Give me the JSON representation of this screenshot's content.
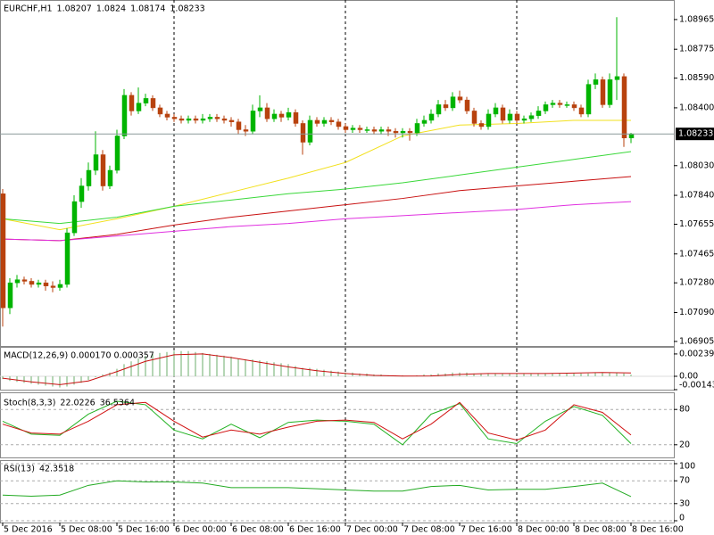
{
  "chart_data": [
    {
      "type": "candlestick",
      "title": "EURCHF,H1",
      "categories": [
        "5 Dec 2016",
        null,
        null,
        null,
        null,
        null,
        null,
        null,
        "5 Dec 08:00",
        null,
        null,
        null,
        null,
        null,
        null,
        null,
        "5 Dec 16:00",
        null,
        null,
        null,
        null,
        null,
        null,
        null,
        "6 Dec 00:00",
        null,
        null,
        null,
        null,
        null,
        null,
        null,
        "6 Dec 08:00",
        null,
        null,
        null,
        null,
        null,
        null,
        null,
        "6 Dec 16:00",
        null,
        null,
        null,
        null,
        null,
        null,
        null,
        "7 Dec 00:00",
        null,
        null,
        null,
        null,
        null,
        null,
        null,
        "7 Dec 08:00",
        null,
        null,
        null,
        null,
        null,
        null,
        null,
        "7 Dec 16:00",
        null,
        null,
        null,
        null,
        null,
        null,
        null,
        "8 Dec 00:00",
        null,
        null,
        null,
        null,
        null,
        null,
        null,
        "8 Dec 08:00",
        null,
        null,
        null,
        null,
        null,
        null,
        null,
        "8 Dec 16:00"
      ],
      "open": [
        1.0785,
        1.0712,
        1.0728,
        1.073,
        1.0729,
        1.0727,
        1.0728,
        1.0726,
        1.0725,
        1.0727,
        1.076,
        1.078,
        1.079,
        1.08,
        1.081,
        1.079,
        1.08,
        1.0822,
        1.0848,
        1.0838,
        1.0843,
        1.0846,
        1.084,
        1.0836,
        1.0834,
        1.0833,
        1.0832,
        1.0833,
        1.0832,
        1.0833,
        1.0834,
        1.0833,
        1.0832,
        1.0831,
        1.0826,
        1.0825,
        1.0838,
        1.084,
        1.0833,
        1.0836,
        1.0834,
        1.0837,
        1.083,
        1.0818,
        1.0832,
        1.083,
        1.0832,
        1.0831,
        1.0828,
        1.0826,
        1.0827,
        1.0826,
        1.0826,
        1.0825,
        1.0826,
        1.0825,
        1.0824,
        1.0825,
        1.0824,
        1.083,
        1.0832,
        1.0836,
        1.0842,
        1.084,
        1.0847,
        1.0845,
        1.0838,
        1.083,
        1.0828,
        1.0836,
        1.084,
        1.0832,
        1.0836,
        1.0832,
        1.0833,
        1.0835,
        1.0838,
        1.0842,
        1.0843,
        1.0842,
        1.0842,
        1.084,
        1.0836,
        1.0855,
        1.0858,
        1.0842,
        1.0858,
        1.086,
        1.08207
      ],
      "high": [
        1.0788,
        1.0731,
        1.0733,
        1.0732,
        1.0731,
        1.073,
        1.073,
        1.0729,
        1.073,
        1.0763,
        1.0784,
        1.0795,
        1.0805,
        1.0825,
        1.0813,
        1.0803,
        1.0826,
        1.0852,
        1.085,
        1.0853,
        1.0849,
        1.0848,
        1.0842,
        1.0838,
        1.0836,
        1.0835,
        1.0835,
        1.0835,
        1.0836,
        1.0836,
        1.0836,
        1.0835,
        1.0834,
        1.0833,
        1.0829,
        1.0842,
        1.0848,
        1.0843,
        1.0839,
        1.0838,
        1.084,
        1.0839,
        1.0832,
        1.0835,
        1.0834,
        1.0834,
        1.0834,
        1.0833,
        1.083,
        1.0829,
        1.0829,
        1.0828,
        1.0828,
        1.0828,
        1.0828,
        1.0827,
        1.0827,
        1.0827,
        1.0833,
        1.0835,
        1.0839,
        1.0845,
        1.0845,
        1.085,
        1.0851,
        1.0847,
        1.084,
        1.0832,
        1.0839,
        1.0843,
        1.0842,
        1.0839,
        1.0838,
        1.0835,
        1.0837,
        1.0841,
        1.0844,
        1.0845,
        1.0845,
        1.0844,
        1.0844,
        1.0842,
        1.0858,
        1.0862,
        1.086,
        1.0862,
        1.0898,
        1.0862,
        1.0824
      ],
      "low": [
        1.07,
        1.0708,
        1.0725,
        1.0727,
        1.0725,
        1.0725,
        1.0723,
        1.0722,
        1.0723,
        1.0725,
        1.0758,
        1.0776,
        1.0787,
        1.0797,
        1.0787,
        1.0788,
        1.0798,
        1.082,
        1.0835,
        1.0836,
        1.0841,
        1.0838,
        1.0834,
        1.0832,
        1.0831,
        1.083,
        1.083,
        1.083,
        1.083,
        1.0831,
        1.0831,
        1.083,
        1.0828,
        1.0823,
        1.0822,
        1.0823,
        1.0834,
        1.0831,
        1.0831,
        1.0831,
        1.0832,
        1.0828,
        1.081,
        1.0816,
        1.0828,
        1.0828,
        1.0829,
        1.0826,
        1.0824,
        1.0824,
        1.0824,
        1.0824,
        1.0823,
        1.0823,
        1.0822,
        1.0821,
        1.0821,
        1.0819,
        1.0822,
        1.0828,
        1.083,
        1.0834,
        1.0838,
        1.0838,
        1.0843,
        1.0836,
        1.0828,
        1.0826,
        1.0826,
        1.0834,
        1.083,
        1.083,
        1.083,
        1.083,
        1.0831,
        1.0833,
        1.0836,
        1.084,
        1.084,
        1.084,
        1.0838,
        1.0834,
        1.0834,
        1.0852,
        1.084,
        1.084,
        1.0845,
        1.0815,
        1.08174
      ],
      "close": [
        1.0712,
        1.0728,
        1.073,
        1.0729,
        1.0727,
        1.0728,
        1.0726,
        1.0725,
        1.0727,
        1.076,
        1.078,
        1.079,
        1.08,
        1.081,
        1.079,
        1.08,
        1.0822,
        1.0848,
        1.0838,
        1.0843,
        1.0846,
        1.084,
        1.0836,
        1.0834,
        1.0833,
        1.0832,
        1.0833,
        1.0832,
        1.0833,
        1.0834,
        1.0833,
        1.0832,
        1.0831,
        1.0826,
        1.0825,
        1.0838,
        1.084,
        1.0833,
        1.0836,
        1.0834,
        1.0837,
        1.083,
        1.0818,
        1.0832,
        1.083,
        1.0832,
        1.0831,
        1.0828,
        1.0826,
        1.0827,
        1.0826,
        1.0826,
        1.0825,
        1.0826,
        1.0825,
        1.0824,
        1.0825,
        1.0824,
        1.083,
        1.0832,
        1.0836,
        1.0842,
        1.084,
        1.0847,
        1.0845,
        1.0838,
        1.083,
        1.0828,
        1.0836,
        1.084,
        1.0832,
        1.0836,
        1.0832,
        1.0833,
        1.0835,
        1.0838,
        1.0842,
        1.0843,
        1.0842,
        1.0842,
        1.084,
        1.0836,
        1.0855,
        1.0858,
        1.0842,
        1.0858,
        1.086,
        1.08207,
        1.08233
      ],
      "up_color": "#00b400",
      "down_color": "#b8420e",
      "series": [
        {
          "color": "#f2e01c",
          "x": [
            0,
            8,
            16,
            24,
            32,
            40,
            48,
            56,
            64,
            72,
            80,
            88
          ],
          "values": [
            1.0769,
            1.0762,
            1.0769,
            1.0777,
            1.0786,
            1.0795,
            1.0805,
            1.0822,
            1.0829,
            1.083,
            1.0832,
            1.0832
          ]
        },
        {
          "color": "#3ad83a",
          "x": [
            0,
            8,
            16,
            24,
            32,
            40,
            48,
            56,
            64,
            72,
            80,
            88
          ],
          "values": [
            1.0769,
            1.0766,
            1.077,
            1.0777,
            1.0781,
            1.0785,
            1.0788,
            1.0792,
            1.0797,
            1.0802,
            1.0807,
            1.0812
          ]
        },
        {
          "color": "#c81010",
          "x": [
            0,
            8,
            16,
            24,
            32,
            40,
            48,
            56,
            64,
            72,
            80,
            88
          ],
          "values": [
            1.0756,
            1.0755,
            1.0759,
            1.0765,
            1.077,
            1.0774,
            1.0778,
            1.0782,
            1.0787,
            1.079,
            1.0793,
            1.0796
          ]
        },
        {
          "color": "#e030e0",
          "x": [
            0,
            8,
            16,
            24,
            32,
            40,
            48,
            56,
            64,
            72,
            80,
            88
          ],
          "values": [
            1.0756,
            1.0755,
            1.0758,
            1.0761,
            1.0764,
            1.0766,
            1.0769,
            1.0771,
            1.0773,
            1.0775,
            1.0778,
            1.078
          ]
        }
      ],
      "ylim": [
        1.06876,
        1.0909
      ],
      "yticks": [
        1.08965,
        1.08775,
        {
          "value": 1.0859,
          "label": "1.08590"
        },
        {
          "value": 1.084,
          "label": "1.08400"
        },
        {
          "value": 1.0803,
          "label": "1.08030"
        },
        {
          "value": 1.0784,
          "label": "1.07840"
        },
        1.07655,
        1.07465,
        {
          "value": 1.0728,
          "label": "1.07280"
        },
        {
          "value": 1.0709,
          "label": "1.07090"
        },
        1.06905
      ],
      "current_price_line": true,
      "period_separators": true
    },
    {
      "type": "macd",
      "title": "MACD(12,26,9) 0.000170 0.000357",
      "values": [
        -0.0003,
        -0.0005,
        -0.0006,
        -0.0007,
        -0.0008,
        -0.0009,
        -0.001,
        -0.0011,
        -0.0012,
        -0.0011,
        -0.0009,
        -0.0007,
        -0.0004,
        -0.0001,
        0.0002,
        0.0004,
        0.0008,
        0.0013,
        0.0016,
        0.0019,
        0.0022,
        0.0024,
        0.0025,
        0.0026,
        0.0027,
        0.0027,
        0.0027,
        0.0026,
        0.0025,
        0.0024,
        0.0023,
        0.0022,
        0.0021,
        0.0019,
        0.0018,
        0.0018,
        0.0017,
        0.0016,
        0.0015,
        0.0014,
        0.0013,
        0.0011,
        0.0009,
        0.0009,
        0.0008,
        0.0007,
        0.0006,
        0.0005,
        0.0004,
        0.0004,
        0.0003,
        0.0003,
        0.0002,
        0.0002,
        0.0001,
        0.0001,
        0.0001,
        0,
        0.0001,
        0.0002,
        0.0002,
        0.0003,
        0.0003,
        0.0004,
        0.0004,
        0.0004,
        0.0003,
        0.0003,
        0.0003,
        0.0003,
        0.0003,
        0.0003,
        0.0003,
        0.0003,
        0.0003,
        0.0003,
        0.0003,
        0.0003,
        0.0003,
        0.0003,
        0.0003,
        0.0003,
        0.0003,
        0.0004,
        0.0004,
        0.0004,
        0.0004,
        0.0003,
        0.00017
      ],
      "color": "#9cc89c",
      "series": [
        {
          "color": "#c81010",
          "x": [
            0,
            4,
            8,
            12,
            16,
            20,
            24,
            28,
            32,
            36,
            40,
            44,
            48,
            52,
            56,
            60,
            64,
            68,
            72,
            76,
            80,
            84,
            88
          ],
          "values": [
            -0.0002,
            -0.0006,
            -0.0009,
            -0.0005,
            0.0005,
            0.0016,
            0.0023,
            0.0024,
            0.002,
            0.0015,
            0.001,
            0.0006,
            0.0003,
            0.0001,
            2e-05,
            3e-05,
            0.0002,
            0.0003,
            0.0003,
            0.0003,
            0.00035,
            0.0004,
            0.000357
          ]
        }
      ],
      "ylim": [
        -0.001432,
        0.003055
      ],
      "yticks": [
        0.002393,
        {
          "value": 0,
          "label": "0.00"
        },
        -0.001432
      ]
    },
    {
      "type": "stochastic",
      "title": "Stoch(8,3,3)",
      "series": [
        {
          "color": "#22b222",
          "x": [
            0,
            4,
            8,
            12,
            16,
            20,
            24,
            28,
            32,
            36,
            40,
            44,
            48,
            52,
            56,
            60,
            64,
            68,
            72,
            76,
            80,
            84,
            88
          ],
          "values": [
            60,
            38,
            36,
            72,
            94,
            88,
            45,
            30,
            55,
            32,
            58,
            62,
            60,
            55,
            20,
            72,
            90,
            30,
            22,
            60,
            85,
            70,
            22.0226
          ]
        },
        {
          "color": "#d01010",
          "x": [
            0,
            4,
            8,
            12,
            16,
            20,
            24,
            28,
            32,
            36,
            40,
            44,
            48,
            52,
            56,
            60,
            64,
            68,
            72,
            76,
            80,
            84,
            88
          ],
          "values": [
            55,
            40,
            38,
            60,
            88,
            92,
            60,
            33,
            45,
            38,
            50,
            60,
            62,
            58,
            30,
            55,
            92,
            40,
            28,
            45,
            88,
            75,
            36.5364
          ]
        }
      ],
      "ylim": [
        0,
        100
      ],
      "yticks": [
        20,
        80
      ]
    },
    {
      "type": "rsi",
      "title": "RSI(13)",
      "series": [
        {
          "color": "#22aa22",
          "x": [
            0,
            4,
            8,
            12,
            16,
            20,
            24,
            28,
            32,
            36,
            40,
            44,
            48,
            52,
            56,
            60,
            64,
            68,
            72,
            76,
            80,
            84,
            88
          ],
          "values": [
            45,
            43,
            45,
            62,
            70,
            68,
            68,
            66,
            58,
            58,
            58,
            56,
            54,
            52,
            52,
            60,
            62,
            54,
            55,
            55,
            60,
            66,
            42.3518
          ]
        }
      ],
      "ylim": [
        0,
        100
      ],
      "yticks": [
        100,
        70,
        30,
        0
      ]
    }
  ]
}
